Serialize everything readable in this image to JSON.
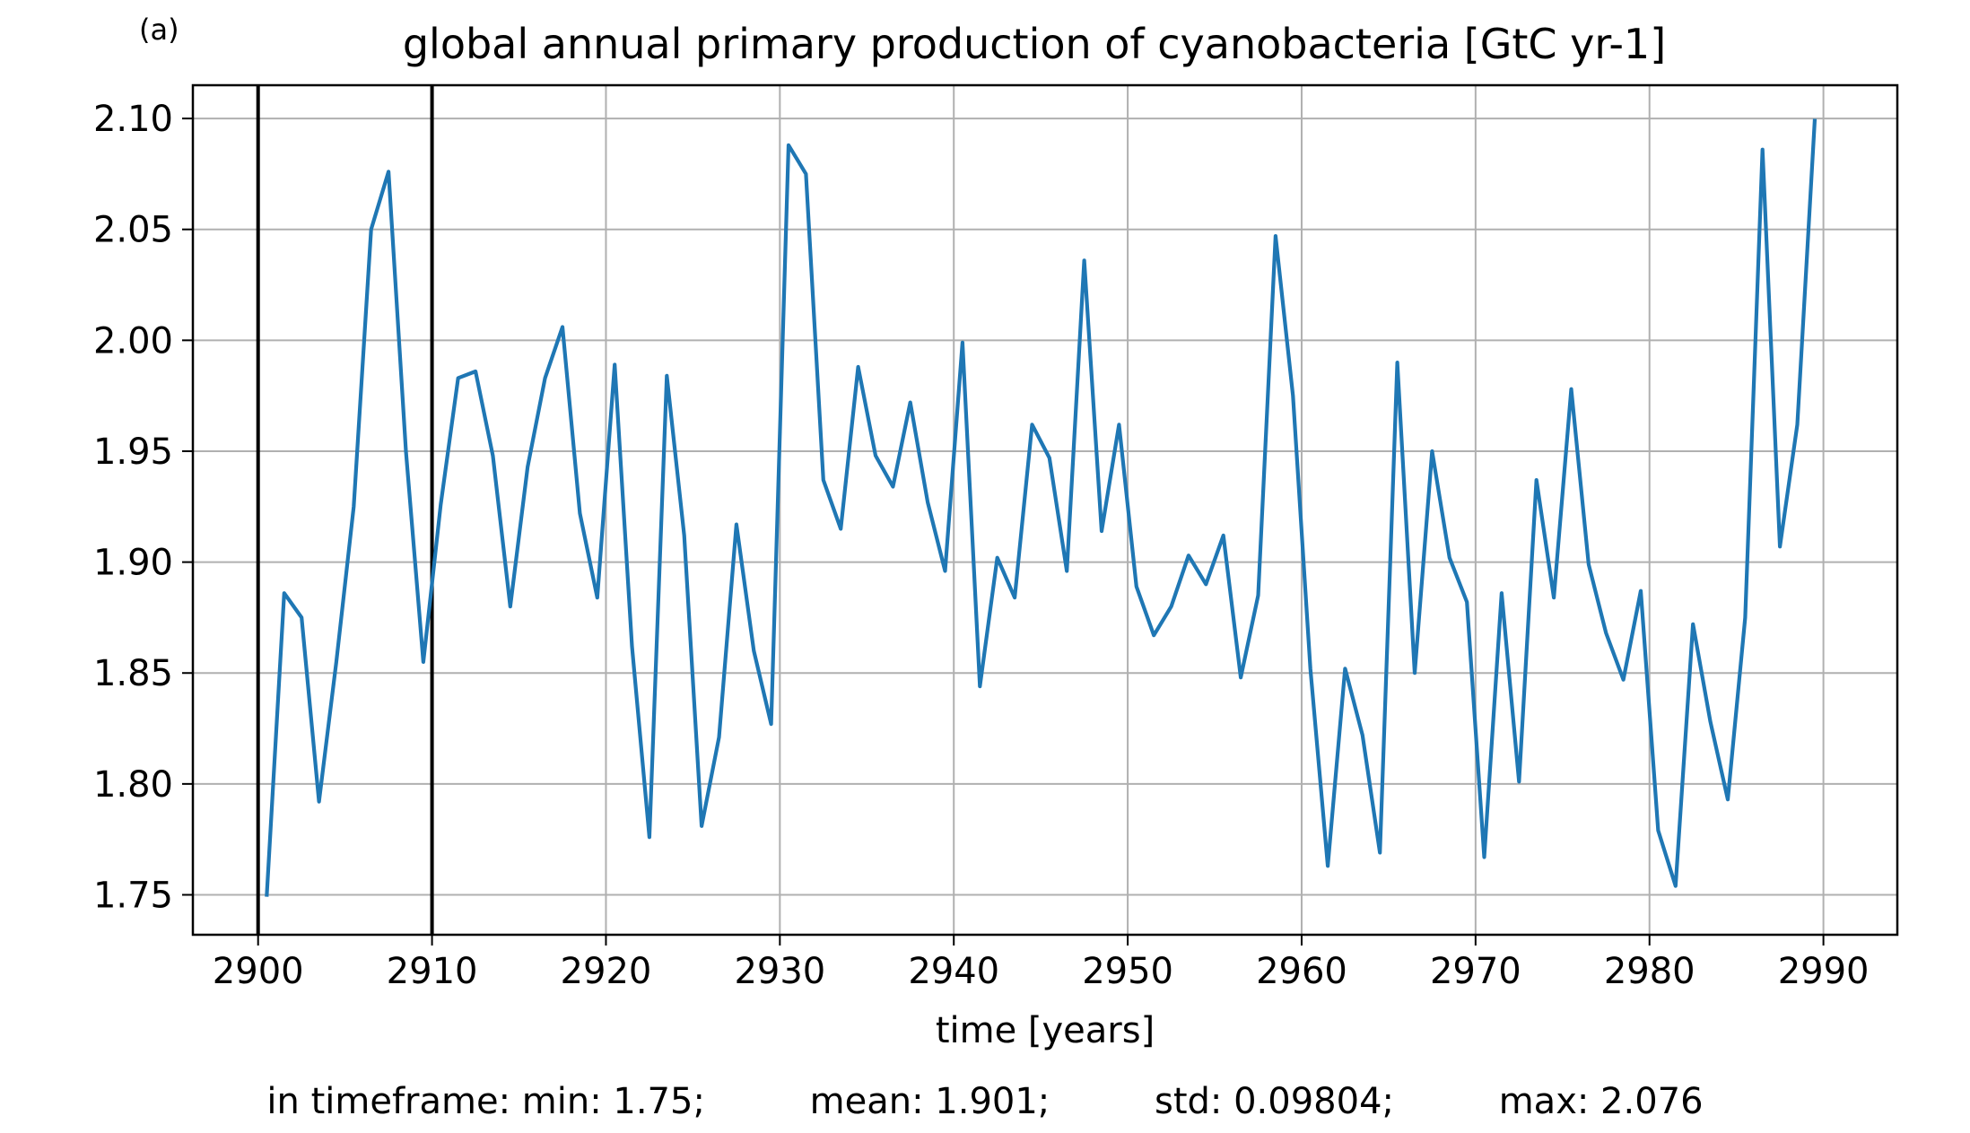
{
  "panel_label": "(a)",
  "stats": {
    "prefix": "in timeframe:",
    "min": "min: 1.75;",
    "mean": "mean: 1.901;",
    "std": "std: 0.09804;",
    "max": "max: 2.076"
  },
  "colors": {
    "line": "#1f77b4",
    "grid": "#b0b0b0",
    "vline": "#000000"
  },
  "chart_data": {
    "type": "line",
    "title": "global annual primary production of cyanobacteria [GtC yr-1]",
    "xlabel": "time [years]",
    "ylabel": "",
    "xlim": [
      2896.25,
      2994.25
    ],
    "ylim": [
      1.732,
      2.115
    ],
    "xticks": [
      2900,
      2910,
      2920,
      2930,
      2940,
      2950,
      2960,
      2970,
      2980,
      2990
    ],
    "yticks": [
      1.75,
      1.8,
      1.85,
      1.9,
      1.95,
      2.0,
      2.05,
      2.1
    ],
    "ytick_labels": [
      "1.75",
      "1.80",
      "1.85",
      "1.90",
      "1.95",
      "2.00",
      "2.05",
      "2.10"
    ],
    "grid": true,
    "vertical_lines": [
      2900,
      2910
    ],
    "series": [
      {
        "x": [
          2900.5,
          2901.5,
          2902.5,
          2903.5,
          2904.5,
          2905.5,
          2906.5,
          2907.5,
          2908.5,
          2909.5,
          2910.5,
          2911.5,
          2912.5,
          2913.5,
          2914.5,
          2915.5,
          2916.5,
          2917.5,
          2918.5,
          2919.5,
          2920.5,
          2921.5,
          2922.5,
          2923.5,
          2924.5,
          2925.5,
          2926.5,
          2927.5,
          2928.5,
          2929.5,
          2930.5,
          2931.5,
          2932.5,
          2933.5,
          2934.5,
          2935.5,
          2936.5,
          2937.5,
          2938.5,
          2939.5,
          2940.5,
          2941.5,
          2942.5,
          2943.5,
          2944.5,
          2945.5,
          2946.5,
          2947.5,
          2948.5,
          2949.5,
          2950.5,
          2951.5,
          2952.5,
          2953.5,
          2954.5,
          2955.5,
          2956.5,
          2957.5,
          2958.5,
          2959.5,
          2960.5,
          2961.5,
          2962.5,
          2963.5,
          2964.5,
          2965.5,
          2966.5,
          2967.5,
          2968.5,
          2969.5,
          2970.5,
          2971.5,
          2972.5,
          2973.5,
          2974.5,
          2975.5,
          2976.5,
          2977.5,
          2978.5,
          2979.5,
          2980.5,
          2981.5,
          2982.5,
          2983.5,
          2984.5,
          2985.5,
          2986.5,
          2987.5,
          2988.5,
          2989.5
        ],
        "y": [
          1.75,
          1.886,
          1.875,
          1.792,
          1.855,
          1.925,
          2.05,
          2.076,
          1.95,
          1.855,
          1.926,
          1.983,
          1.986,
          1.948,
          1.88,
          1.943,
          1.983,
          2.006,
          1.922,
          1.884,
          1.989,
          1.862,
          1.776,
          1.984,
          1.912,
          1.781,
          1.821,
          1.917,
          1.86,
          1.827,
          2.088,
          2.075,
          1.937,
          1.915,
          1.988,
          1.948,
          1.934,
          1.972,
          1.927,
          1.896,
          1.999,
          1.844,
          1.902,
          1.884,
          1.962,
          1.947,
          1.896,
          2.036,
          1.914,
          1.962,
          1.889,
          1.867,
          1.88,
          1.903,
          1.89,
          1.912,
          1.848,
          1.885,
          2.047,
          1.975,
          1.852,
          1.763,
          1.852,
          1.822,
          1.769,
          1.99,
          1.85,
          1.95,
          1.902,
          1.882,
          1.767,
          1.886,
          1.801,
          1.937,
          1.884,
          1.978,
          1.899,
          1.868,
          1.847,
          1.887,
          1.779,
          1.754,
          1.872,
          1.828,
          1.793,
          1.875,
          2.086,
          1.907,
          1.962,
          2.099
        ]
      }
    ]
  }
}
